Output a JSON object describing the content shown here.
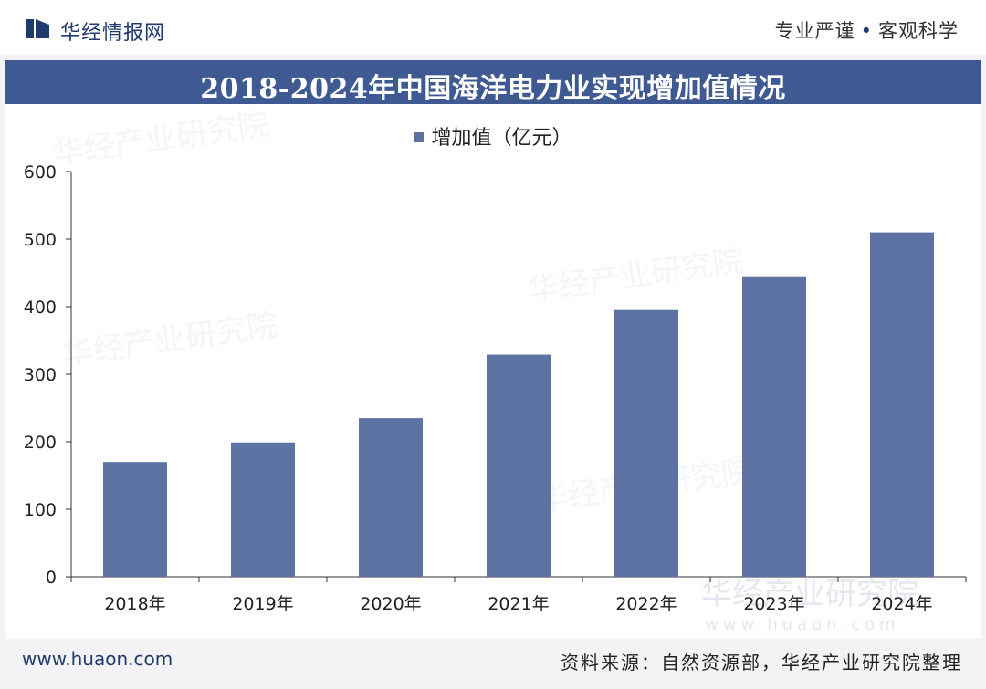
{
  "header": {
    "brand": "华经情报网",
    "slogan_left": "专业严谨",
    "slogan_right": "客观科学"
  },
  "footer": {
    "website": "www.huaon.com",
    "source": "资料来源：自然资源部，华经产业研究院整理"
  },
  "watermark": {
    "text": "华经产业研究院",
    "url": "www.huaon.com"
  },
  "colors": {
    "bar": "#5c73a3",
    "title_bg": "#3f5a92",
    "brand": "#1f3b6e"
  },
  "chart_data": {
    "type": "bar",
    "title": "2018-2024年中国海洋电力业实现增加值情况",
    "categories": [
      "2018年",
      "2019年",
      "2020年",
      "2021年",
      "2022年",
      "2023年",
      "2024年"
    ],
    "series": [
      {
        "name": "增加值（亿元）",
        "values": [
          170,
          199,
          235,
          329,
          395,
          445,
          510
        ]
      }
    ],
    "ylim": [
      0,
      600
    ],
    "yticks": [
      0,
      100,
      200,
      300,
      400,
      500,
      600
    ],
    "grid": false,
    "legend": "top-center"
  }
}
